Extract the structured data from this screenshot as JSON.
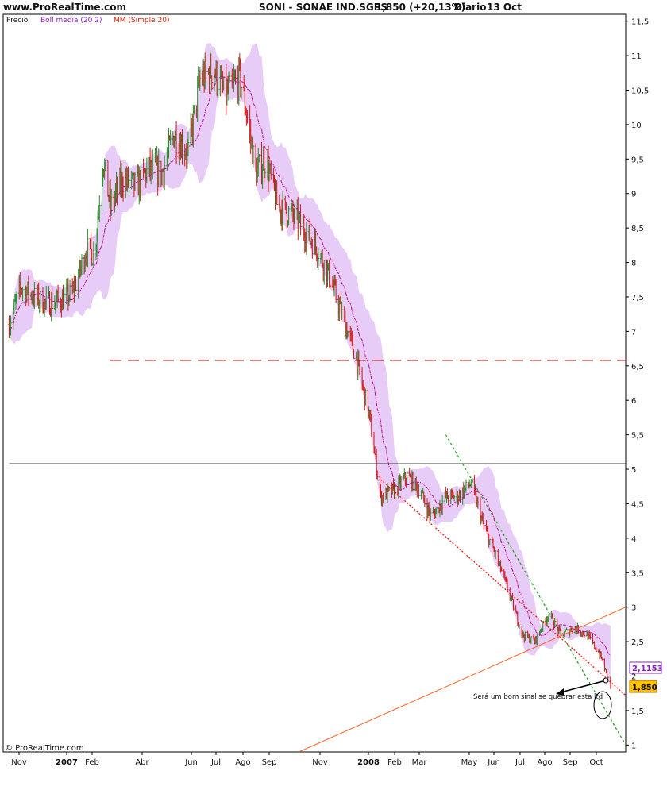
{
  "header": {
    "site": "www.ProRealTime.com",
    "instrument": "SONI - SONAE IND.SGPS",
    "quote": "1,850 (+20,13%)",
    "period": "Diario",
    "date": "13 Oct"
  },
  "legend": {
    "price": "Precio",
    "bollinger": "Boll media (20 2)",
    "ma": "MM (Simple 20)"
  },
  "footer": {
    "copyright": "© ProRealTime.com"
  },
  "colors": {
    "bollinger_band": "#e8ccf8",
    "up_bar": "#2a8a2a",
    "down_bar": "#d01818",
    "ma_line": "#c0108a",
    "bollinger_label": "#8a20c0",
    "ma_label": "#d02010",
    "resistance": "#a01010",
    "support_orange": "#ff6020",
    "trend_red": "#ff1010",
    "trend_green": "#20a020",
    "price_tag": "#ffc000"
  },
  "chart_data": {
    "type": "line",
    "title": "SONI - SONAE IND.SGPS",
    "ylim": [
      0.9,
      11.6
    ],
    "yticks": [
      "11,5",
      "11",
      "10,5",
      "10",
      "9,5",
      "9",
      "8,5",
      "8",
      "7,5",
      "7",
      "6,5",
      "6",
      "5,5",
      "5",
      "4,5",
      "4",
      "3,5",
      "3",
      "2,5",
      "2",
      "1,5",
      "1"
    ],
    "xticks": [
      {
        "label": "Nov",
        "bold": false
      },
      {
        "label": "2007",
        "bold": true
      },
      {
        "label": "Feb",
        "bold": false
      },
      {
        "label": "Abr",
        "bold": false
      },
      {
        "label": "Jun",
        "bold": false
      },
      {
        "label": "Jul",
        "bold": false
      },
      {
        "label": "Ago",
        "bold": false
      },
      {
        "label": "Sep",
        "bold": false
      },
      {
        "label": "Nov",
        "bold": false
      },
      {
        "label": "2008",
        "bold": true
      },
      {
        "label": "Feb",
        "bold": false
      },
      {
        "label": "Mar",
        "bold": false
      },
      {
        "label": "May",
        "bold": false
      },
      {
        "label": "Jun",
        "bold": false
      },
      {
        "label": "Jul",
        "bold": false
      },
      {
        "label": "Ago",
        "bold": false
      },
      {
        "label": "Sep",
        "bold": false
      },
      {
        "label": "Oct",
        "bold": false
      }
    ],
    "price_path": [
      {
        "date": "2006-11-01",
        "close": 7.1
      },
      {
        "date": "2006-11-15",
        "close": 7.65
      },
      {
        "date": "2006-12-01",
        "close": 7.5
      },
      {
        "date": "2006-12-15",
        "close": 7.4
      },
      {
        "date": "2007-01-01",
        "close": 7.45
      },
      {
        "date": "2007-01-15",
        "close": 7.55
      },
      {
        "date": "2007-02-01",
        "close": 8.2
      },
      {
        "date": "2007-02-10",
        "close": 8.1
      },
      {
        "date": "2007-02-20",
        "close": 9.5
      },
      {
        "date": "2007-03-01",
        "close": 8.8
      },
      {
        "date": "2007-03-15",
        "close": 9.2
      },
      {
        "date": "2007-04-01",
        "close": 9.1
      },
      {
        "date": "2007-04-15",
        "close": 9.35
      },
      {
        "date": "2007-05-01",
        "close": 9.3
      },
      {
        "date": "2007-05-15",
        "close": 9.85
      },
      {
        "date": "2007-06-01",
        "close": 9.6
      },
      {
        "date": "2007-06-15",
        "close": 10.65
      },
      {
        "date": "2007-07-01",
        "close": 10.8
      },
      {
        "date": "2007-07-15",
        "close": 10.4
      },
      {
        "date": "2007-08-01",
        "close": 10.7
      },
      {
        "date": "2007-08-10",
        "close": 10.1
      },
      {
        "date": "2007-08-20",
        "close": 9.3
      },
      {
        "date": "2007-09-01",
        "close": 9.5
      },
      {
        "date": "2007-09-15",
        "close": 8.8
      },
      {
        "date": "2007-10-01",
        "close": 8.7
      },
      {
        "date": "2007-10-15",
        "close": 8.5
      },
      {
        "date": "2007-11-01",
        "close": 8.2
      },
      {
        "date": "2007-11-15",
        "close": 7.8
      },
      {
        "date": "2007-12-01",
        "close": 7.2
      },
      {
        "date": "2007-12-15",
        "close": 6.7
      },
      {
        "date": "2008-01-01",
        "close": 5.8
      },
      {
        "date": "2008-01-15",
        "close": 4.6
      },
      {
        "date": "2008-02-01",
        "close": 4.7
      },
      {
        "date": "2008-02-15",
        "close": 4.9
      },
      {
        "date": "2008-03-01",
        "close": 4.7
      },
      {
        "date": "2008-03-15",
        "close": 4.3
      },
      {
        "date": "2008-04-01",
        "close": 4.6
      },
      {
        "date": "2008-04-15",
        "close": 4.6
      },
      {
        "date": "2008-05-01",
        "close": 4.8
      },
      {
        "date": "2008-05-15",
        "close": 4.2
      },
      {
        "date": "2008-06-01",
        "close": 3.7
      },
      {
        "date": "2008-06-15",
        "close": 3.2
      },
      {
        "date": "2008-07-01",
        "close": 2.6
      },
      {
        "date": "2008-07-15",
        "close": 2.5
      },
      {
        "date": "2008-08-01",
        "close": 2.9
      },
      {
        "date": "2008-08-15",
        "close": 2.6
      },
      {
        "date": "2008-09-01",
        "close": 2.7
      },
      {
        "date": "2008-09-15",
        "close": 2.6
      },
      {
        "date": "2008-10-01",
        "close": 2.3
      },
      {
        "date": "2008-10-13",
        "close": 1.85
      }
    ],
    "lines": [
      {
        "name": "resistance",
        "style": "dashed",
        "from": {
          "date": "2007-03-01",
          "y": 6.58
        },
        "to": {
          "date": "2008-10-31",
          "y": 6.58
        }
      },
      {
        "name": "horizontal",
        "style": "solid",
        "from": {
          "date": "2006-11-01",
          "y": 5.08
        },
        "to": {
          "date": "2008-10-31",
          "y": 5.08
        }
      },
      {
        "name": "support",
        "style": "solid",
        "from": {
          "date": "2007-10-10",
          "y": 0.9
        },
        "to": {
          "date": "2008-10-31",
          "y": 3.0
        }
      },
      {
        "name": "trend-red",
        "style": "dotted",
        "from": {
          "date": "2008-01-15",
          "y": 4.85
        },
        "to": {
          "date": "2008-10-31",
          "y": 1.72
        }
      },
      {
        "name": "trend-green",
        "style": "dotted",
        "from": {
          "date": "2008-04-01",
          "y": 5.5
        },
        "to": {
          "date": "2008-10-31",
          "y": 1.0
        }
      }
    ],
    "price_labels": {
      "ma_value": "2,1153",
      "last": "1,850"
    },
    "annotation": "Será um bom sinal se quebrar esta ltd"
  }
}
